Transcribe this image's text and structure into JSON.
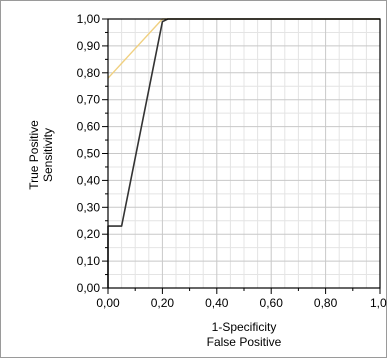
{
  "chart_data": {
    "type": "line",
    "xlabel_line1": "1-Specificity",
    "xlabel_line2": "False Positive",
    "ylabel_line1": "True Positive",
    "ylabel_line2": "Sensitivity",
    "xlim": [
      0,
      1
    ],
    "ylim": [
      0,
      1
    ],
    "x_ticks": [
      {
        "value": 0.0,
        "label": "0,00"
      },
      {
        "value": 0.2,
        "label": "0,20"
      },
      {
        "value": 0.4,
        "label": "0,40"
      },
      {
        "value": 0.6,
        "label": "0,60"
      },
      {
        "value": 0.8,
        "label": "0,80"
      },
      {
        "value": 1.0,
        "label": "1,0"
      }
    ],
    "y_ticks": [
      {
        "value": 0.0,
        "label": "0,00"
      },
      {
        "value": 0.1,
        "label": "0,10"
      },
      {
        "value": 0.2,
        "label": "0,20"
      },
      {
        "value": 0.3,
        "label": "0,30"
      },
      {
        "value": 0.4,
        "label": "0,40"
      },
      {
        "value": 0.5,
        "label": "0,50"
      },
      {
        "value": 0.6,
        "label": "0,60"
      },
      {
        "value": 0.7,
        "label": "0,70"
      },
      {
        "value": 0.8,
        "label": "0,80"
      },
      {
        "value": 0.9,
        "label": "0,90"
      },
      {
        "value": 1.0,
        "label": "1,00"
      }
    ],
    "grid": true,
    "minor_step": 0.05,
    "series": [
      {
        "color": "#f0d080",
        "points": [
          [
            0.0,
            0.78
          ],
          [
            0.2,
            1.0
          ],
          [
            1.0,
            1.0
          ]
        ]
      },
      {
        "color": "#333333",
        "points": [
          [
            0.0,
            0.0
          ],
          [
            0.0,
            0.23
          ],
          [
            0.05,
            0.23
          ],
          [
            0.2,
            0.99
          ],
          [
            0.22,
            1.0
          ],
          [
            1.0,
            1.0
          ]
        ]
      }
    ]
  }
}
